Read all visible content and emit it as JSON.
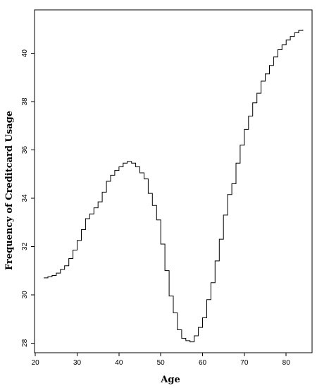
{
  "chart_data": {
    "type": "line",
    "title": "",
    "xlabel": "Age",
    "ylabel": "Frequency of Creditcard Usage",
    "xlim": [
      19.8,
      86.2
    ],
    "ylim": [
      27.6,
      41.8
    ],
    "xticks": [
      20,
      30,
      40,
      50,
      60,
      70,
      80
    ],
    "yticks": [
      28,
      30,
      32,
      34,
      36,
      38,
      40
    ],
    "grid": false,
    "line_style": "step",
    "series": [
      {
        "x": [
          22,
          23,
          24,
          25,
          26,
          27,
          28,
          29,
          30,
          31,
          32,
          33,
          34,
          35,
          36,
          37,
          38,
          39,
          40,
          41,
          42,
          43,
          44,
          45,
          46,
          47,
          48,
          49,
          50,
          51,
          52,
          53,
          54,
          55,
          56,
          57,
          58,
          59,
          60,
          61,
          62,
          63,
          64,
          65,
          66,
          67,
          68,
          69,
          70,
          71,
          72,
          73,
          74,
          75,
          76,
          77,
          78,
          79,
          80,
          81,
          82,
          83,
          84
        ],
        "y": [
          30.7,
          30.75,
          30.8,
          30.9,
          31.05,
          31.2,
          31.5,
          31.85,
          32.25,
          32.7,
          33.15,
          33.35,
          33.6,
          33.85,
          34.25,
          34.7,
          34.95,
          35.15,
          35.3,
          35.45,
          35.52,
          35.45,
          35.3,
          35.05,
          34.8,
          34.2,
          33.7,
          33.1,
          32.1,
          31.0,
          29.95,
          29.25,
          28.55,
          28.2,
          28.1,
          28.05,
          28.3,
          28.65,
          29.05,
          29.8,
          30.5,
          31.4,
          32.3,
          33.3,
          34.15,
          34.6,
          35.45,
          36.2,
          36.85,
          37.4,
          37.95,
          38.35,
          38.85,
          39.15,
          39.5,
          39.85,
          40.15,
          40.35,
          40.55,
          40.7,
          40.85,
          40.95,
          40.98
        ]
      }
    ]
  }
}
